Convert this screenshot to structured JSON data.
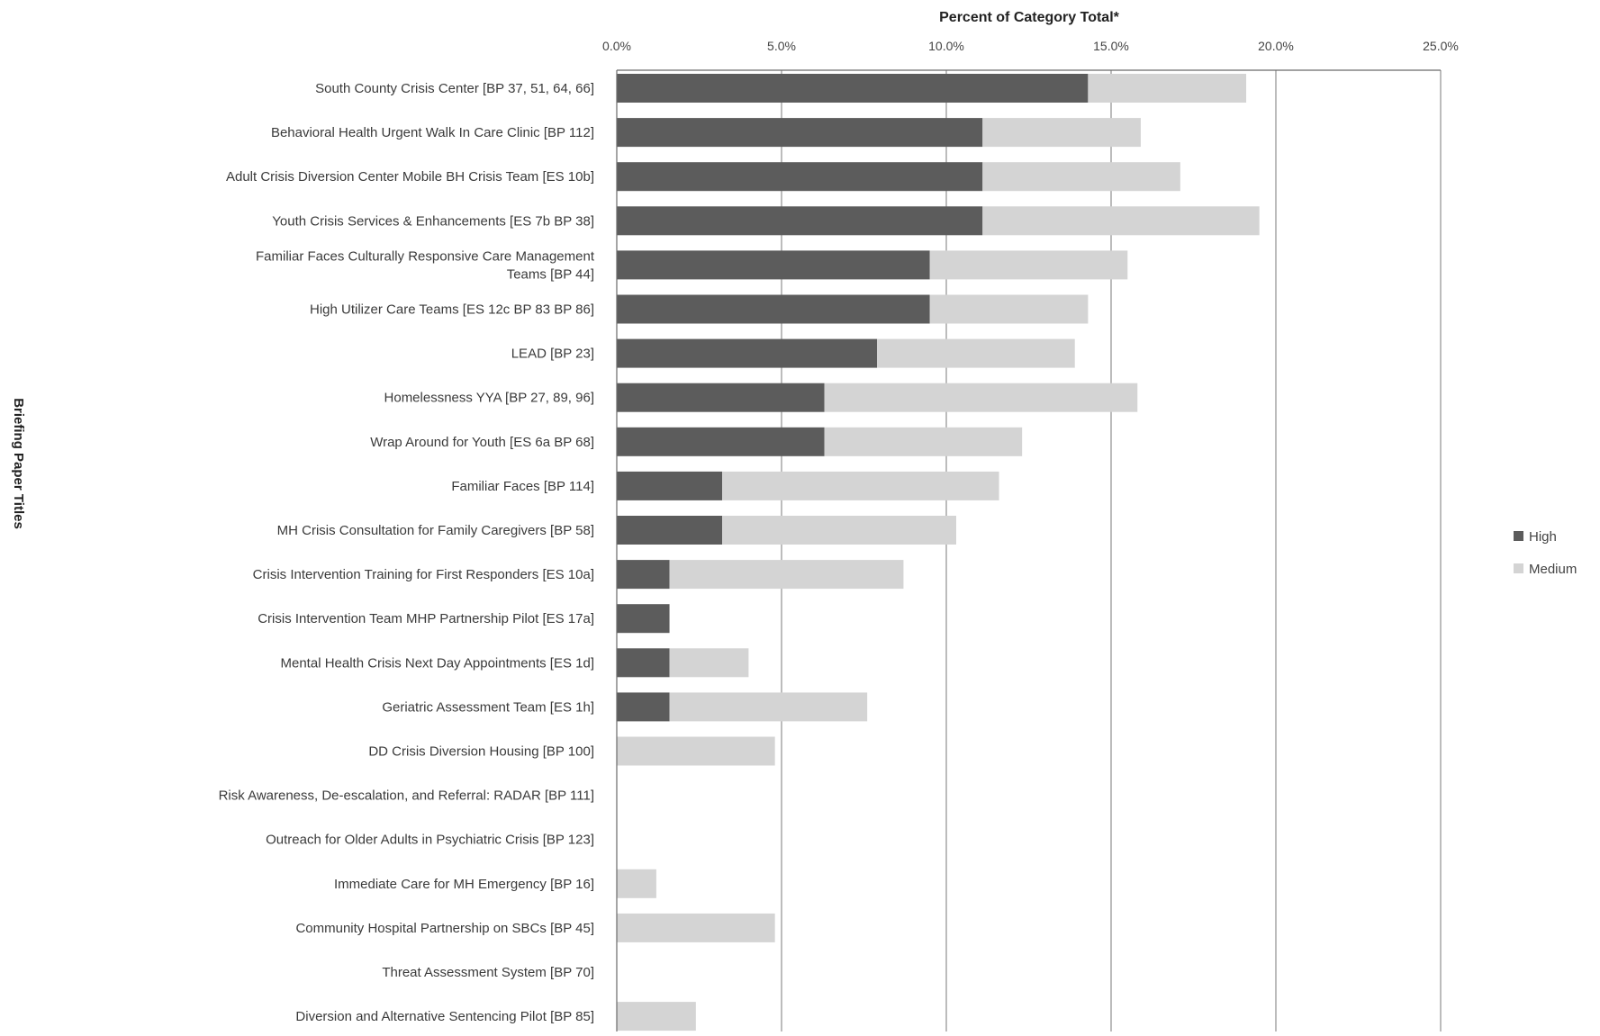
{
  "chart_data": {
    "type": "bar",
    "orientation": "horizontal",
    "stacked": true,
    "xlabel": "Percent of Category Total*",
    "ylabel": "Briefing Paper Titles",
    "xlim": [
      0,
      25
    ],
    "xticks": [
      "0.0%",
      "5.0%",
      "10.0%",
      "15.0%",
      "20.0%",
      "25.0%"
    ],
    "grid": "vertical",
    "legend_position": "right",
    "categories": [
      "South County Crisis Center [BP 37, 51, 64, 66]",
      "Behavioral Health Urgent Walk In Care Clinic [BP 112]",
      "Adult Crisis Diversion Center Mobile BH Crisis Team [ES 10b]",
      "Youth Crisis Services & Enhancements [ES 7b BP 38]",
      [
        "Familiar Faces Culturally Responsive Care Management",
        "Teams [BP 44]"
      ],
      "High Utilizer Care Teams [ES 12c BP 83 BP 86]",
      "LEAD [BP 23]",
      "Homelessness YYA [BP 27, 89, 96]",
      "Wrap Around for Youth [ES 6a BP 68]",
      "Familiar Faces [BP 114]",
      "MH Crisis Consultation for Family Caregivers [BP 58]",
      "Crisis Intervention Training for First Responders [ES 10a]",
      "Crisis Intervention Team MHP Partnership Pilot [ES 17a]",
      "Mental Health Crisis Next Day Appointments [ES 1d]",
      "Geriatric Assessment Team [ES 1h]",
      "DD Crisis Diversion Housing [BP 100]",
      "Risk Awareness, De-escalation, and Referral: RADAR [BP 111]",
      "Outreach for Older Adults in Psychiatric Crisis [BP 123]",
      "Immediate Care for MH Emergency [BP 16]",
      "Community Hospital Partnership on SBCs [BP 45]",
      "Threat Assessment System [BP 70]",
      "Diversion and Alternative Sentencing Pilot [BP 85]"
    ],
    "series": [
      {
        "name": "High",
        "color": "#5c5c5c",
        "values": [
          14.3,
          11.1,
          11.1,
          11.1,
          9.5,
          9.5,
          7.9,
          6.3,
          6.3,
          3.2,
          3.2,
          1.6,
          1.6,
          1.6,
          1.6,
          0,
          0,
          0,
          0,
          0,
          0,
          0
        ]
      },
      {
        "name": "Medium",
        "color": "#d4d4d4",
        "values": [
          4.8,
          4.8,
          6.0,
          8.4,
          6.0,
          4.8,
          6.0,
          9.5,
          6.0,
          8.4,
          7.1,
          7.1,
          0,
          2.4,
          6.0,
          4.8,
          0,
          0,
          1.2,
          4.8,
          0,
          2.4
        ]
      }
    ]
  }
}
